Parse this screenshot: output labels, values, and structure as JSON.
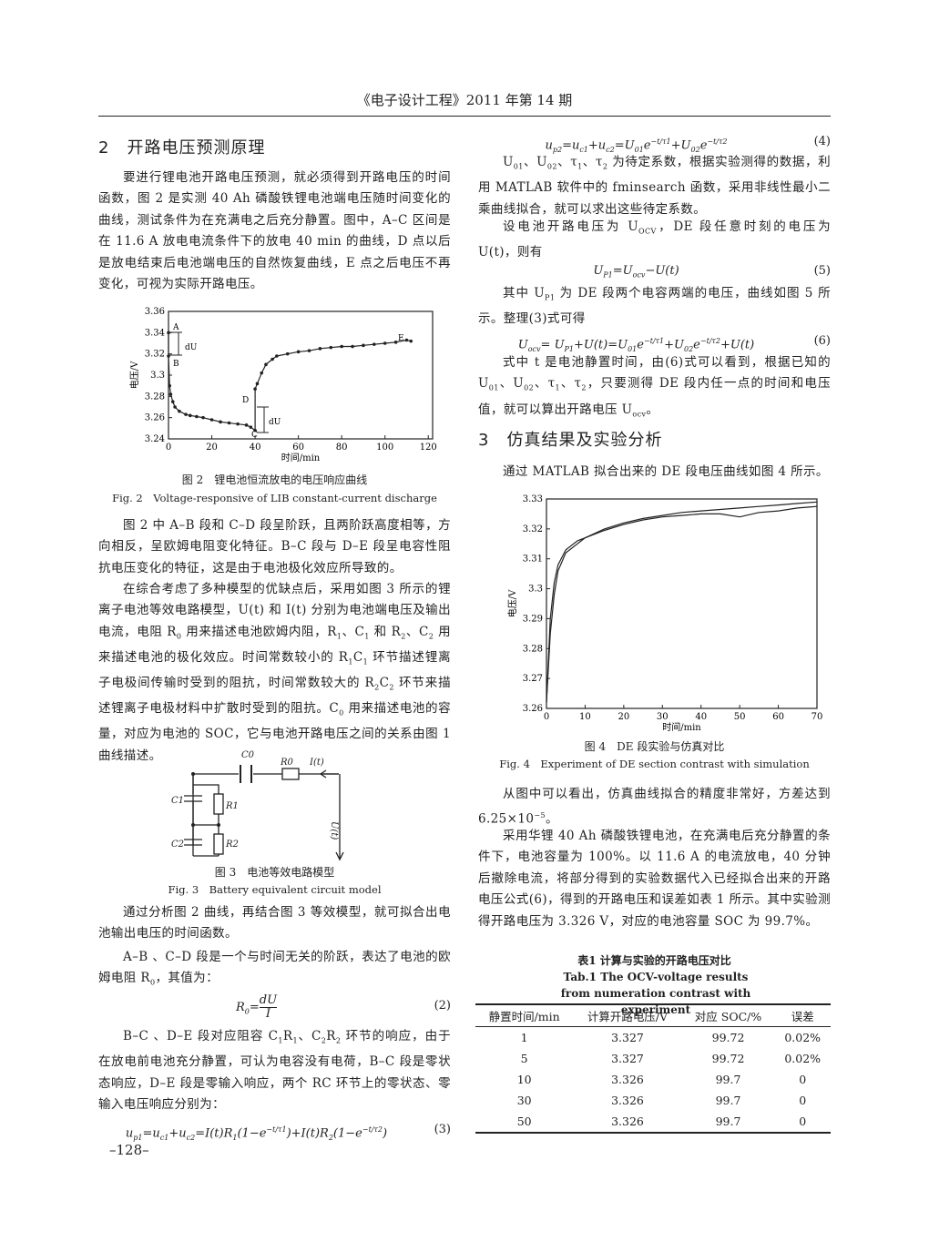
{
  "header": {
    "title": "《电子设计工程》2011 年第 14 期"
  },
  "left": {
    "heading": "2　开路电压预测原理",
    "p1": [
      "要进行锂电池开路电压预测，就必须得到开路电压的时间函数，图 2 是实测 40 Ah 磷酸铁锂电池端电压随时间变化的曲线，测试条件为在充满电之后充分静置。图中，A–C 区间是在 11.6 A 放电电流条件下的放电 40 min 的曲线，D 点以后是放电结束后电池端电压的自然恢复曲线，E 点之后电压不再变化，可视为实际开路电压。"
    ],
    "fig2": {
      "type": "line",
      "xlabel": "时间/min",
      "ylabel": "电压/V",
      "xlim": [
        0,
        122
      ],
      "ylim": [
        3.24,
        3.36
      ],
      "xticks": [
        0,
        20,
        40,
        60,
        80,
        100,
        120
      ],
      "yticks": [
        3.24,
        3.26,
        3.28,
        3.3,
        3.32,
        3.34,
        3.36
      ],
      "x": [
        0,
        0,
        0.5,
        1,
        2,
        3,
        5,
        8,
        10,
        13,
        16,
        20,
        24,
        28,
        32,
        36,
        38,
        40,
        40,
        41,
        43,
        45,
        48,
        50,
        55,
        60,
        65,
        70,
        75,
        80,
        85,
        90,
        95,
        100,
        105,
        110,
        112
      ],
      "series": [
        {
          "color": "#222",
          "values": [
            3.34,
            3.318,
            3.29,
            3.282,
            3.275,
            3.27,
            3.266,
            3.263,
            3.262,
            3.261,
            3.26,
            3.258,
            3.256,
            3.255,
            3.254,
            3.253,
            3.251,
            3.248,
            3.287,
            3.292,
            3.302,
            3.31,
            3.315,
            3.318,
            3.32,
            3.322,
            3.323,
            3.325,
            3.326,
            3.327,
            3.327,
            3.328,
            3.329,
            3.33,
            3.331,
            3.333,
            3.332
          ]
        }
      ],
      "annotations": [
        "A",
        "B",
        "C",
        "D",
        "E",
        "dU",
        "dU"
      ],
      "caption": "图 2　锂电池恒流放电的电压响应曲线",
      "caption_en": "Fig. 2　Voltage-responsive of LIB constant-current discharge"
    },
    "p2": [
      "图 2 中 A–B 段和 C–D 段呈阶跃，且两阶跃高度相等，方向相反，呈欧姆电阻变化特征。B–C 段与 D–E 段呈电容性阻抗电压变化的特征，这是由于电池极化效应所导致的。"
    ],
    "p3": [
      "在综合考虑了多种模型的优缺点后，采用如图 3 所示的锂离子电池等效电路模型，U(t) 和 I(t) 分别为电池端电压及输出电流，电阻 R",
      {
        "sub": "0"
      },
      " 用来描述电池欧姆内阻，R",
      {
        "sub": "1"
      },
      "、C",
      {
        "sub": "1"
      },
      " 和 R",
      {
        "sub": "2"
      },
      "、C",
      {
        "sub": "2"
      },
      " 用来描述电池的极化效应。时间常数较小的 R",
      {
        "sub": "1"
      },
      "C",
      {
        "sub": "1"
      },
      " 环节描述锂离子电极间传输时受到的阻抗，时间常数较大的 R",
      {
        "sub": "2"
      },
      "C",
      {
        "sub": "2"
      },
      " 环节来描述锂离子电极材料中扩散时受到的阻抗。C",
      {
        "sub": "0"
      },
      " 用来描述电池的容量，对应为电池的 SOC，它与电池开路电压之间的关系由图 1 曲线描述。"
    ],
    "fig3": {
      "labels": [
        "C0",
        "R0",
        "I(t)",
        "C1",
        "R1",
        "C2",
        "R2",
        "U(t)"
      ],
      "caption": "图 3　电池等效电路模型",
      "caption_en": "Fig. 3　Battery equivalent circuit model"
    },
    "p4": [
      "通过分析图 2 曲线，再结合图 3 等效模型，就可拟合出电池输出电压的时间函数。"
    ],
    "p5": [
      "A–B 、C–D 段是一个与时间无关的阶跃，表达了电池的欧姆电阻 R",
      {
        "sub": "0"
      },
      "，其值为："
    ],
    "eq2": {
      "body": [
        "R",
        {
          "sub": "0"
        },
        "=",
        {
          "frac": {
            "num": "dU",
            "den": "I"
          }
        }
      ],
      "number": "(2)"
    },
    "p6": [
      "B–C 、D–E 段对应阻容 C",
      {
        "sub": "1"
      },
      "R",
      {
        "sub": "1"
      },
      "、C",
      {
        "sub": "2"
      },
      "R",
      {
        "sub": "2"
      },
      " 环节的响应，由于在放电前电池充分静置，可认为电容没有电荷，B–C 段是零状态响应，D–E 段是零输入响应，两个 RC 环节上的零状态、零输入电压响应分别为："
    ],
    "eq3": {
      "body": [
        "u",
        {
          "sub": "p1"
        },
        "=u",
        {
          "sub": "c1"
        },
        "+u",
        {
          "sub": "c2"
        },
        "=I(t)R",
        {
          "sub": "1"
        },
        "(1−e",
        {
          "sup": "−t/τ1"
        },
        ")+I(t)R",
        {
          "sub": "2"
        },
        "(1−e",
        {
          "sup": "−t/τ2"
        },
        ")"
      ],
      "number": "(3)"
    },
    "page_number": "–128–"
  },
  "right": {
    "eq4": {
      "body": [
        "u",
        {
          "sub": "p2"
        },
        "=u",
        {
          "sub": "c1"
        },
        "+u",
        {
          "sub": "c2"
        },
        "=U",
        {
          "sub": "01"
        },
        "e",
        {
          "sup": "−t/τ1"
        },
        "+U",
        {
          "sub": "02"
        },
        "e",
        {
          "sup": "−t/τ2"
        }
      ],
      "number": "(4)"
    },
    "p1": [
      "U",
      {
        "sub": "01"
      },
      "、U",
      {
        "sub": "02"
      },
      "、τ",
      {
        "sub": "1"
      },
      "、τ",
      {
        "sub": "2"
      },
      " 为待定系数，根据实验测得的数据，利用 MATLAB 软件中的 fminsearch 函数，采用非线性最小二乘曲线拟合，就可以求出这些待定系数。"
    ],
    "p2": [
      "设电池开路电压为 U",
      {
        "sub": "OCV"
      },
      "，DE 段任意时刻的电压为 U(t)，则有"
    ],
    "eq5": {
      "body": [
        "U",
        {
          "sub": "P1"
        },
        "=U",
        {
          "sub": "ocv"
        },
        "−U(t)"
      ],
      "number": "(5)"
    },
    "p3": [
      "其中 U",
      {
        "sub": "P1"
      },
      " 为 DE 段两个电容两端的电压，曲线如图 5 所示。整理(3)式可得"
    ],
    "eq6": {
      "body": [
        "U",
        {
          "sub": "ocv"
        },
        "= U",
        {
          "sub": "P1"
        },
        "+U(t)=U",
        {
          "sub": "01"
        },
        "e",
        {
          "sup": "−t/τ1"
        },
        "+U",
        {
          "sub": "02"
        },
        "e",
        {
          "sup": "−t/τ2"
        },
        "+U(t)"
      ],
      "number": "(6)"
    },
    "p4": [
      "式中 t 是电池静置时间，由(6)式可以看到，根据已知的 U",
      {
        "sub": "01"
      },
      "、U",
      {
        "sub": "02"
      },
      "、τ",
      {
        "sub": "1"
      },
      "、τ",
      {
        "sub": "2"
      },
      "，只要测得 DE 段内任一点的时间和电压值，就可以算出开路电压 U",
      {
        "sub": "ocv"
      },
      "。"
    ],
    "heading": "3　仿真结果及实验分析",
    "p5": [
      "通过 MATLAB 拟合出来的 DE 段电压曲线如图 4 所示。"
    ],
    "fig4": {
      "type": "line",
      "xlabel": "时间/min",
      "ylabel": "电压/V",
      "xlim": [
        0,
        70
      ],
      "ylim": [
        3.26,
        3.33
      ],
      "xticks": [
        0,
        10,
        20,
        30,
        40,
        50,
        60,
        70
      ],
      "yticks": [
        3.26,
        3.27,
        3.28,
        3.29,
        3.3,
        3.31,
        3.32,
        3.33
      ],
      "x": [
        0,
        1,
        2,
        3,
        5,
        8,
        10,
        15,
        20,
        25,
        30,
        35,
        40,
        45,
        50,
        55,
        60,
        65,
        70
      ],
      "series": [
        {
          "color": "#222",
          "values": [
            3.262,
            3.29,
            3.302,
            3.308,
            3.313,
            3.316,
            3.317,
            3.32,
            3.322,
            3.3235,
            3.3245,
            3.3255,
            3.326,
            3.3265,
            3.327,
            3.3275,
            3.328,
            3.3285,
            3.329
          ]
        },
        {
          "color": "#222",
          "values": [
            3.262,
            3.285,
            3.298,
            3.306,
            3.312,
            3.315,
            3.317,
            3.3195,
            3.3215,
            3.323,
            3.324,
            3.3245,
            3.325,
            3.325,
            3.324,
            3.3255,
            3.326,
            3.327,
            3.3275
          ]
        }
      ],
      "caption": "图 4　DE 段实验与仿真对比",
      "caption_en": "Fig. 4　Experiment of DE section contrast with simulation"
    },
    "p6": [
      "从图中可以看出，仿真曲线拟合的精度非常好，方差达到 6.25×10",
      {
        "sup": "−5"
      },
      "。"
    ],
    "p7": [
      "采用华锂 40 Ah 磷酸铁锂电池，在充满电后充分静置的条件下，电池容量为 100%。以 11.6 A 的电流放电，40 分钟后撤除电流，将部分得到的实验数据代入已经拟合出来的开路电压公式(6)，得到的开路电压和误差如表 1 所示。其中实验测得开路电压为 3.326 V，对应的电池容量 SOC 为 99.7%。"
    ],
    "table": {
      "caption": "表1 计算与实验的开路电压对比",
      "caption_en": "Tab.1 The OCV-voltage results from numeration contrast with experiment",
      "header": [
        "静置时间/min",
        "计算开路电压/V",
        "对应 SOC/%",
        "误差"
      ],
      "rows": [
        [
          "1",
          "3.327",
          "99.72",
          "0.02%"
        ],
        [
          "5",
          "3.327",
          "99.72",
          "0.02%"
        ],
        [
          "10",
          "3.326",
          "99.7",
          "0"
        ],
        [
          "30",
          "3.326",
          "99.7",
          "0"
        ],
        [
          "50",
          "3.326",
          "99.7",
          "0"
        ]
      ]
    }
  }
}
